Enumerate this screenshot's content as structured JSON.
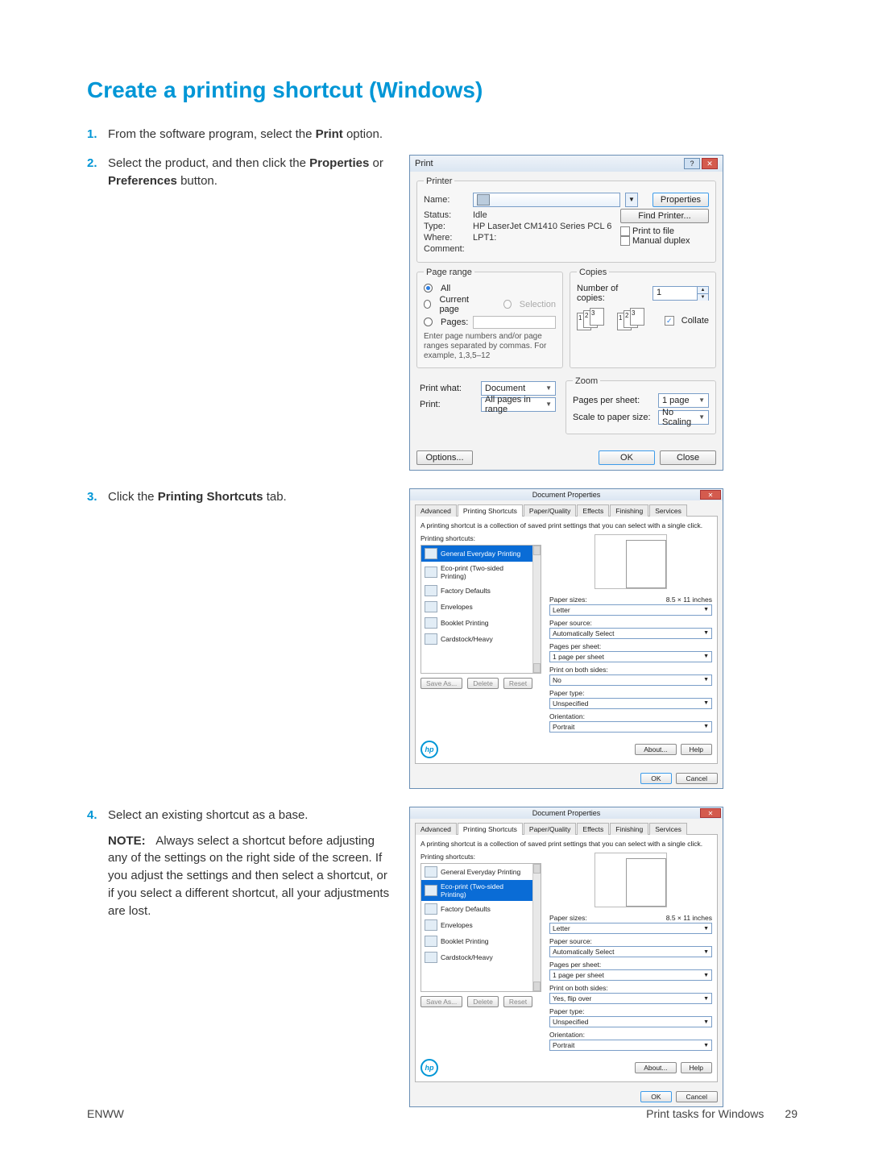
{
  "colors": {
    "heading": "#0096d6",
    "step_number": "#0096d6",
    "body_text": "#333333",
    "dialog_border": "#6a8fb5",
    "select_highlight": "#0a6cd6"
  },
  "heading": "Create a printing shortcut (Windows)",
  "steps": {
    "s1": {
      "num": "1.",
      "text_a": "From the software program, select the ",
      "bold_a": "Print",
      "text_b": " option."
    },
    "s2": {
      "num": "2.",
      "text_a": "Select the product, and then click the ",
      "bold_a": "Properties",
      "text_b": " or ",
      "bold_b": "Preferences",
      "text_c": " button."
    },
    "s3": {
      "num": "3.",
      "text_a": "Click the ",
      "bold_a": "Printing Shortcuts",
      "text_b": " tab."
    },
    "s4": {
      "num": "4.",
      "line1": "Select an existing shortcut as a base.",
      "note_label": "NOTE:",
      "note_text": "Always select a shortcut before adjusting any of the settings on the right side of the screen. If you adjust the settings and then select a shortcut, or if you select a different shortcut, all your adjustments are lost."
    }
  },
  "print_dialog": {
    "title": "Print",
    "printer_legend": "Printer",
    "name_label": "Name:",
    "status_label": "Status:",
    "status_value": "Idle",
    "type_label": "Type:",
    "type_value": "HP LaserJet CM1410 Series PCL 6",
    "where_label": "Where:",
    "where_value": "LPT1:",
    "comment_label": "Comment:",
    "properties_btn": "Properties",
    "find_printer_btn": "Find Printer...",
    "print_to_file": "Print to file",
    "manual_duplex": "Manual duplex",
    "page_range_legend": "Page range",
    "all": "All",
    "current": "Current page",
    "selection": "Selection",
    "pages": "Pages:",
    "pages_help": "Enter page numbers and/or page ranges separated by commas. For example, 1,3,5–12",
    "copies_legend": "Copies",
    "num_copies": "Number of copies:",
    "num_copies_val": "1",
    "collate": "Collate",
    "print_what_label": "Print what:",
    "print_what_val": "Document",
    "print_label": "Print:",
    "print_val": "All pages in range",
    "zoom_legend": "Zoom",
    "pps_label": "Pages per sheet:",
    "pps_val": "1 page",
    "scale_label": "Scale to paper size:",
    "scale_val": "No Scaling",
    "options_btn": "Options...",
    "ok_btn": "OK",
    "close_btn": "Close"
  },
  "props_dialog_1": {
    "title": "Document Properties",
    "tabs": [
      "Advanced",
      "Printing Shortcuts",
      "Paper/Quality",
      "Effects",
      "Finishing",
      "Services"
    ],
    "desc": "A printing shortcut is a collection of saved print settings that you can select with a single click.",
    "list_label": "Printing shortcuts:",
    "shortcuts": [
      "General Everyday Printing",
      "Eco-print (Two-sided Printing)",
      "Factory Defaults",
      "Envelopes",
      "Booklet Printing",
      "Cardstock/Heavy"
    ],
    "selected_index": 0,
    "save_as": "Save As...",
    "delete": "Delete",
    "reset": "Reset",
    "paper_sizes_label": "Paper sizes:",
    "paper_sizes_right": "8.5 × 11 inches",
    "paper_sizes_val": "Letter",
    "paper_source_label": "Paper source:",
    "paper_source_val": "Automatically Select",
    "pps_label": "Pages per sheet:",
    "pps_val": "1 page per sheet",
    "both_sides_label": "Print on both sides:",
    "both_sides_val": "No",
    "paper_type_label": "Paper type:",
    "paper_type_val": "Unspecified",
    "orientation_label": "Orientation:",
    "orientation_val": "Portrait",
    "about": "About...",
    "help": "Help",
    "ok": "OK",
    "cancel": "Cancel"
  },
  "props_dialog_2": {
    "selected_index": 1,
    "both_sides_val": "Yes, flip over"
  },
  "footer": {
    "left": "ENWW",
    "right_text": "Print tasks for Windows",
    "page_num": "29"
  }
}
